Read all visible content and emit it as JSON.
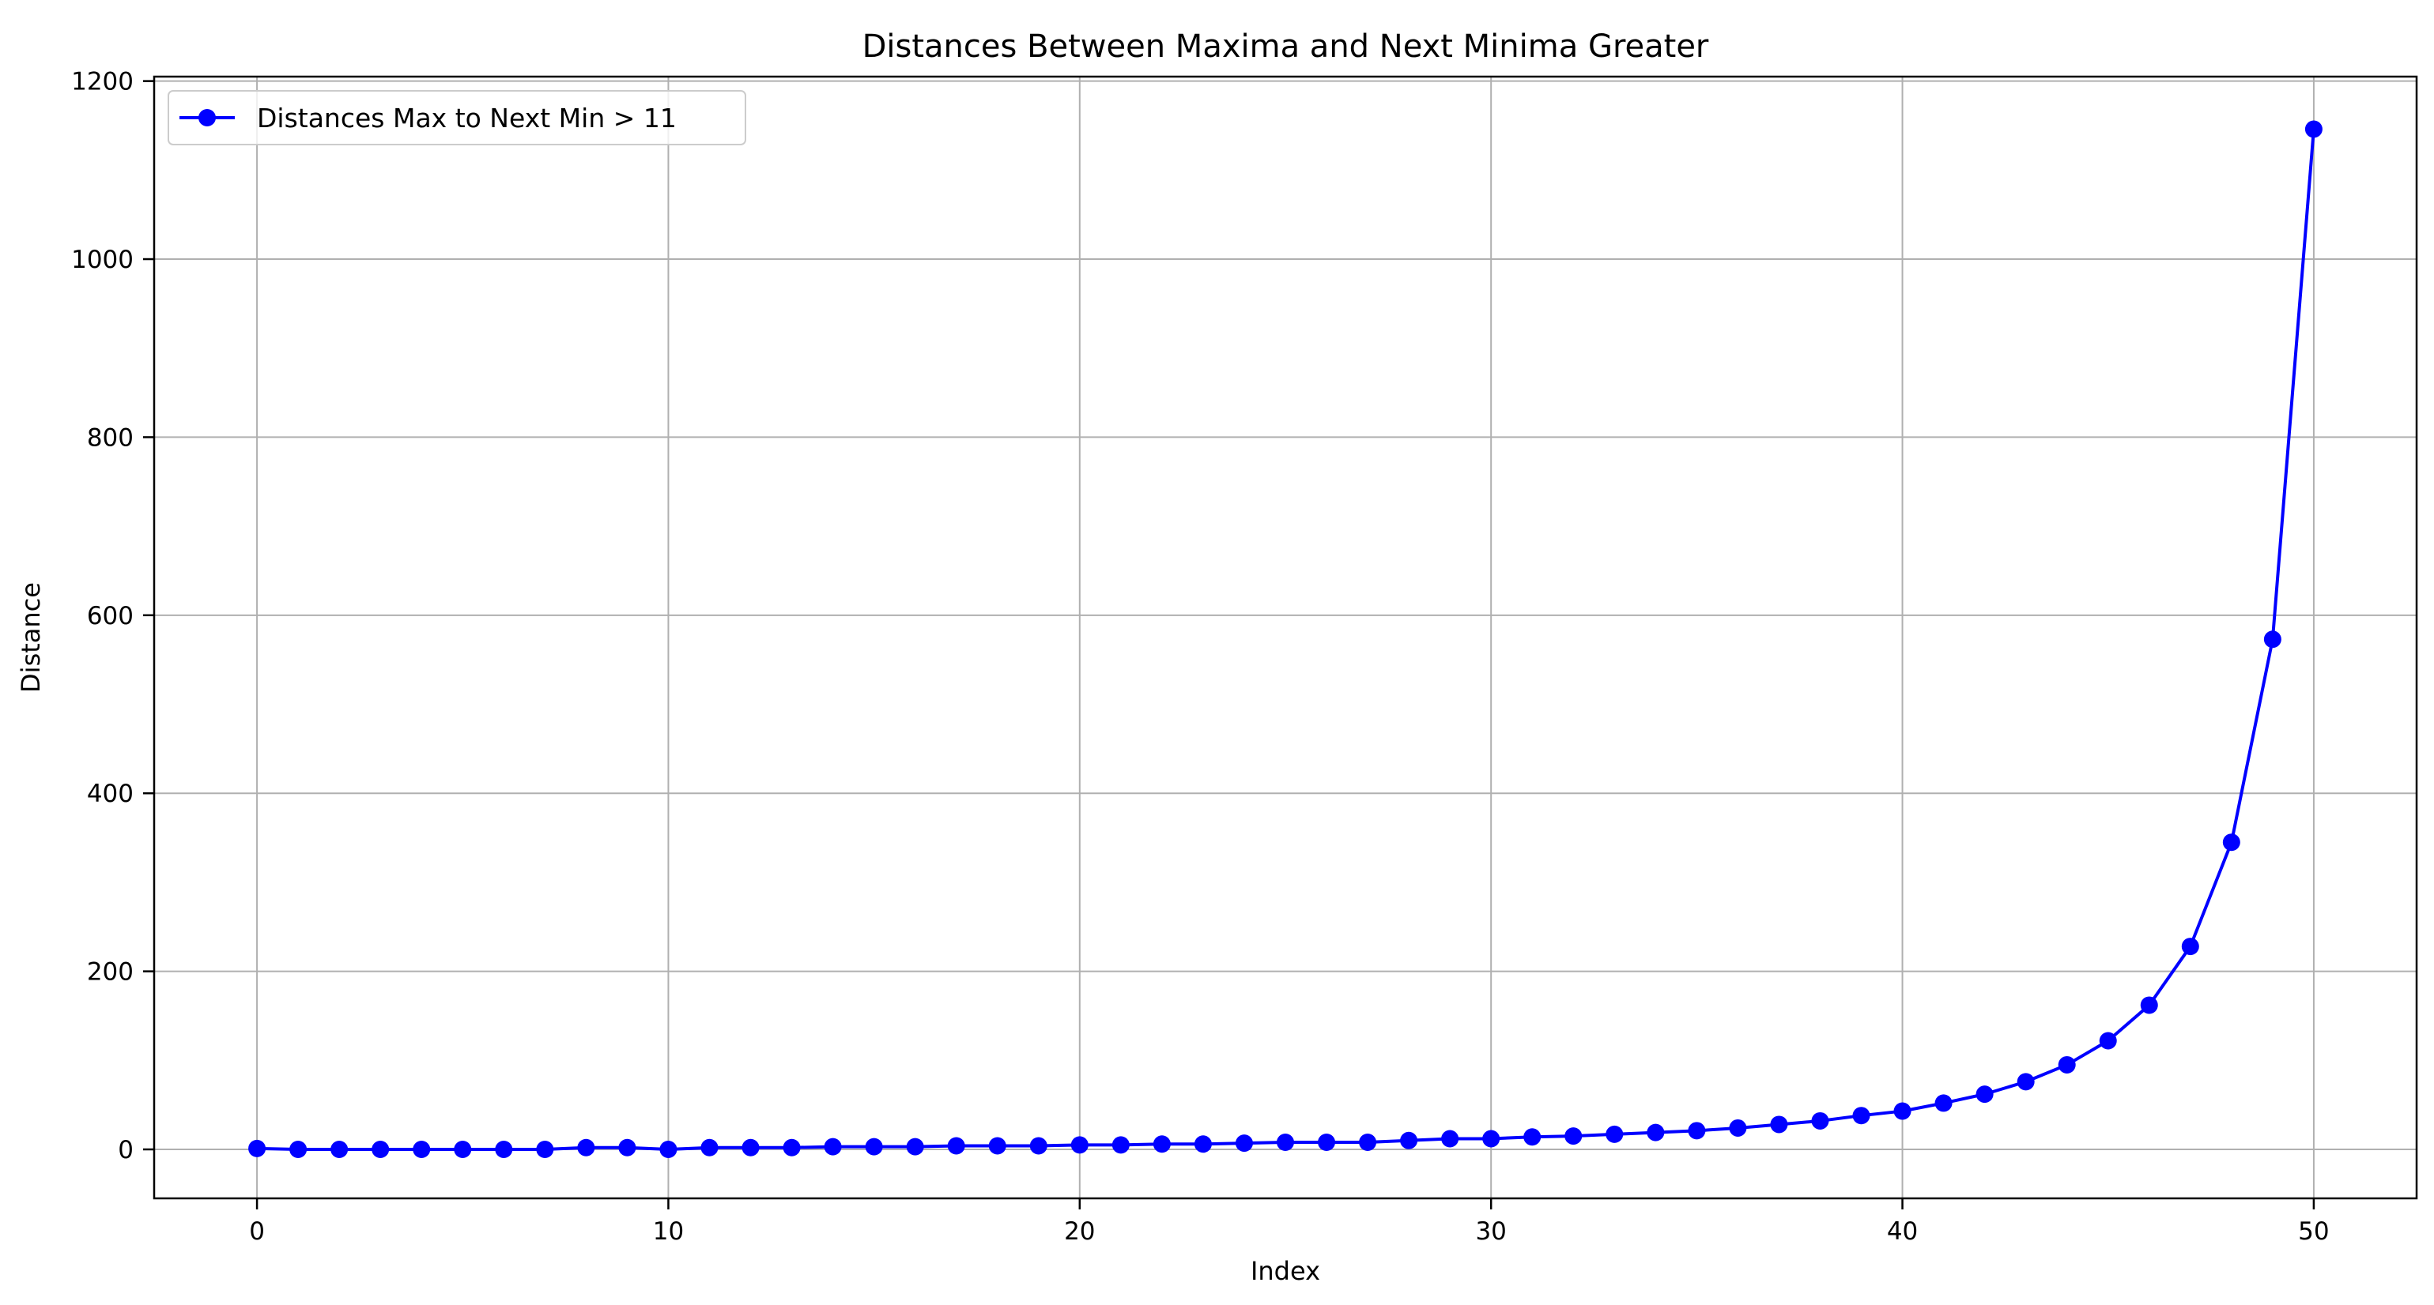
{
  "chart_data": {
    "type": "line",
    "title": "Distances Between Maxima and Next Minima Greater",
    "xlabel": "Index",
    "ylabel": "Distance",
    "xlim": [
      -2.5,
      52.5
    ],
    "ylim": [
      -55,
      1205
    ],
    "xticks": [
      0,
      10,
      20,
      30,
      40,
      50
    ],
    "yticks": [
      0,
      200,
      400,
      600,
      800,
      1000,
      1200
    ],
    "grid": true,
    "legend_position": "top-left",
    "series": [
      {
        "name": "Distances Max to Next Min > 11",
        "color": "#0000ff",
        "marker": "circle",
        "x": [
          0,
          1,
          2,
          3,
          4,
          5,
          6,
          7,
          8,
          9,
          10,
          11,
          12,
          13,
          14,
          15,
          16,
          17,
          18,
          19,
          20,
          21,
          22,
          23,
          24,
          25,
          26,
          27,
          28,
          29,
          30,
          31,
          32,
          33,
          34,
          35,
          36,
          37,
          38,
          39,
          40,
          41,
          42,
          43,
          44,
          45,
          46,
          47,
          48,
          49,
          50
        ],
        "values": [
          1,
          0,
          0,
          0,
          0,
          0,
          0,
          0,
          2,
          2,
          0,
          2,
          2,
          2,
          3,
          3,
          3,
          4,
          4,
          4,
          5,
          5,
          6,
          6,
          7,
          8,
          8,
          8,
          10,
          12,
          12,
          14,
          15,
          17,
          19,
          21,
          24,
          28,
          32,
          38,
          43,
          52,
          62,
          76,
          95,
          122,
          162,
          228,
          345,
          573,
          1146
        ]
      }
    ]
  }
}
